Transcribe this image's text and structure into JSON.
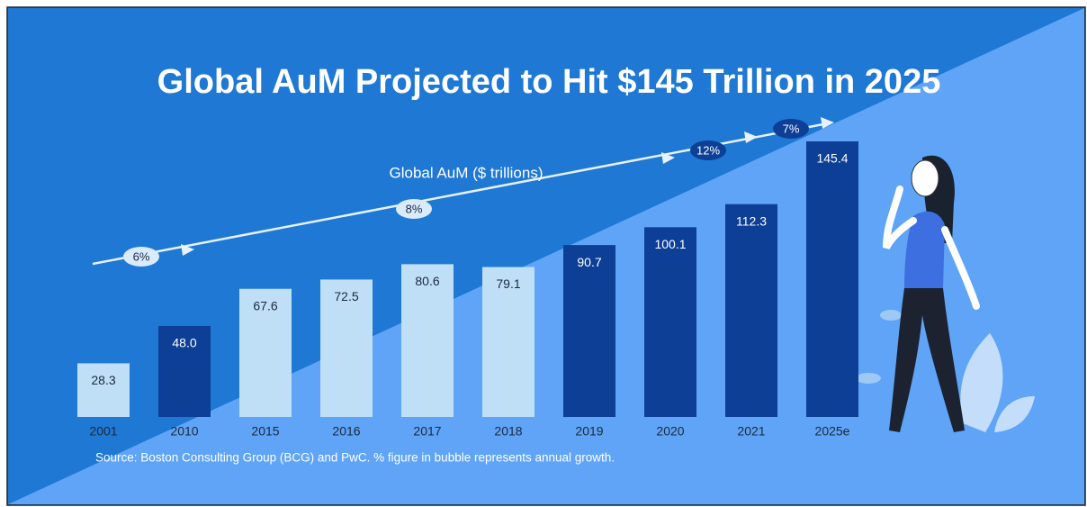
{
  "chart_data": {
    "type": "bar",
    "title": "Global AuM Projected to Hit $145 Trillion in 2025",
    "subtitle": "Global AuM ($ trillions)",
    "categories": [
      "2001",
      "2010",
      "2015",
      "2016",
      "2017",
      "2018",
      "2019",
      "2020",
      "2021",
      "2025e"
    ],
    "values": [
      28.3,
      48.0,
      67.6,
      72.5,
      80.6,
      79.1,
      90.7,
      100.1,
      112.3,
      145.4
    ],
    "value_labels": [
      "28.3",
      "48.0",
      "67.6",
      "72.5",
      "80.6",
      "79.1",
      "90.7",
      "100.1",
      "112.3",
      "145.4"
    ],
    "colors": [
      "#bfdff7",
      "#0c3f95",
      "#bfdff7",
      "#bfdff7",
      "#bfdff7",
      "#bfdff7",
      "#0c3f95",
      "#0c3f95",
      "#0c3f95",
      "#0c3f95"
    ],
    "annotations": [
      "6%",
      "8%",
      "12%",
      "7%"
    ],
    "source": "Source: Boston Consulting Group (BCG) and PwC. % figure in bubble represents annual growth."
  }
}
